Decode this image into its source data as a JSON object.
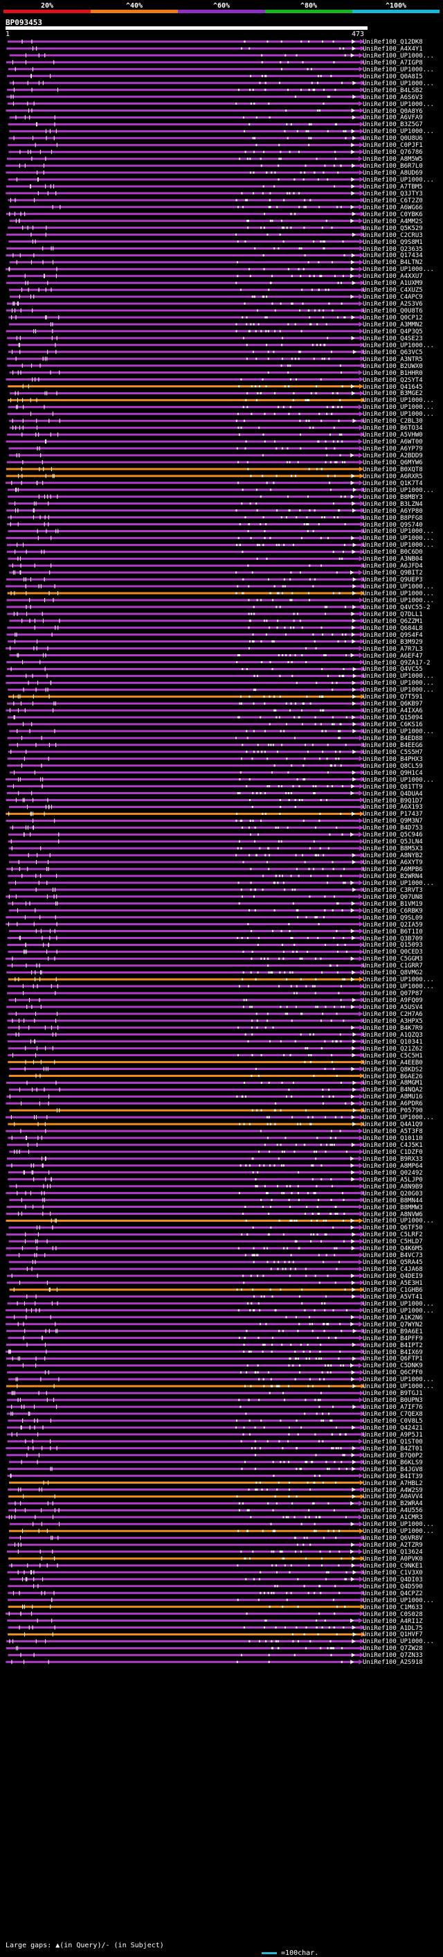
{
  "scale": {
    "labels": [
      "20%",
      "^40%",
      "^60%",
      "^80%",
      "^100%"
    ],
    "colors": [
      "#e0101a",
      "#f07a18",
      "#8d2fc8",
      "#16b41a",
      "#18b8d8"
    ]
  },
  "query": {
    "id": "BP093453",
    "start": "1",
    "end": "473"
  },
  "colors": {
    "purple": "#b13cc8",
    "orange": "#f08c1c",
    "white": "#ffffff"
  },
  "hits": [
    {
      "label": "UniRef100_Q12DK8",
      "c": "p"
    },
    {
      "label": "UniRef100_A4X4Y1",
      "c": "p"
    },
    {
      "label": "UniRef100_UP1000...",
      "c": "p"
    },
    {
      "label": "UniRef100_A7IGP8",
      "c": "p"
    },
    {
      "label": "UniRef100_UP1000...",
      "c": "p"
    },
    {
      "label": "UniRef100_Q0A8I5",
      "c": "p"
    },
    {
      "label": "UniRef100_UP1000...",
      "c": "p"
    },
    {
      "label": "UniRef100_B4LSB2",
      "c": "p"
    },
    {
      "label": "UniRef100_A6S6V3",
      "c": "p"
    },
    {
      "label": "UniRef100_UP1000...",
      "c": "p"
    },
    {
      "label": "UniRef100_Q0A8Y6",
      "c": "p"
    },
    {
      "label": "UniRef100_A6VFA9",
      "c": "p"
    },
    {
      "label": "UniRef100_B3Z5G7",
      "c": "p"
    },
    {
      "label": "UniRef100_UP1000...",
      "c": "p"
    },
    {
      "label": "UniRef100_Q0U8U6",
      "c": "p"
    },
    {
      "label": "UniRef100_C0PJF1",
      "c": "p"
    },
    {
      "label": "UniRef100_Q76786",
      "c": "p"
    },
    {
      "label": "UniRef100_A8M5W5",
      "c": "p"
    },
    {
      "label": "UniRef100_B6R7L0",
      "c": "p"
    },
    {
      "label": "UniRef100_A8UD69",
      "c": "p"
    },
    {
      "label": "UniRef100_UP1000...",
      "c": "p"
    },
    {
      "label": "UniRef100_A7TBM5",
      "c": "p"
    },
    {
      "label": "UniRef100_Q3JTY3",
      "c": "p"
    },
    {
      "label": "UniRef100_C6T2Z0",
      "c": "p"
    },
    {
      "label": "UniRef100_A6WG66",
      "c": "p"
    },
    {
      "label": "UniRef100_C0YBK6",
      "c": "p"
    },
    {
      "label": "UniRef100_A4MM2S",
      "c": "p"
    },
    {
      "label": "UniRef100_Q5K529",
      "c": "p"
    },
    {
      "label": "UniRef100_C2CRU3",
      "c": "p"
    },
    {
      "label": "UniRef100_Q9S8M1",
      "c": "p"
    },
    {
      "label": "UniRef100_Q23635",
      "c": "p"
    },
    {
      "label": "UniRef100_Q17434",
      "c": "p"
    },
    {
      "label": "UniRef100_B4LTN2",
      "c": "p"
    },
    {
      "label": "UniRef100_UP1000...",
      "c": "p"
    },
    {
      "label": "UniRef100_A4XXU7",
      "c": "p"
    },
    {
      "label": "UniRef100_A1UXM9",
      "c": "p"
    },
    {
      "label": "UniRef100_C4XUZ5",
      "c": "p"
    },
    {
      "label": "UniRef100_C4APC9",
      "c": "p"
    },
    {
      "label": "UniRef100_A2S3V6",
      "c": "p"
    },
    {
      "label": "UniRef100_Q0U8T6",
      "c": "p"
    },
    {
      "label": "UniRef100_Q0CP12",
      "c": "p"
    },
    {
      "label": "UniRef100_A3MMN2",
      "c": "p"
    },
    {
      "label": "UniRef100_Q4P3Q5",
      "c": "p"
    },
    {
      "label": "UniRef100_Q4SE23",
      "c": "p"
    },
    {
      "label": "UniRef100_UP1000...",
      "c": "p"
    },
    {
      "label": "UniRef100_Q63VC5",
      "c": "p"
    },
    {
      "label": "UniRef100_A3NTR5",
      "c": "p"
    },
    {
      "label": "UniRef100_B2UWX0",
      "c": "p"
    },
    {
      "label": "UniRef100_B1HHR0",
      "c": "p"
    },
    {
      "label": "UniRef100_Q2SYT4",
      "c": "p"
    },
    {
      "label": "UniRef100_Q41645",
      "c": "o"
    },
    {
      "label": "UniRef100_B3MGE2",
      "c": "p"
    },
    {
      "label": "UniRef100_UP1000...",
      "c": "o"
    },
    {
      "label": "UniRef100_UP1000...",
      "c": "p"
    },
    {
      "label": "UniRef100_UP1000...",
      "c": "p"
    },
    {
      "label": "UniRef100_C2BL30",
      "c": "p"
    },
    {
      "label": "UniRef100_B6TO34",
      "c": "p"
    },
    {
      "label": "UniRef100_A5VHW0",
      "c": "p"
    },
    {
      "label": "UniRef100_A6WT00",
      "c": "p"
    },
    {
      "label": "UniRef100_A6YP79",
      "c": "p"
    },
    {
      "label": "UniRef100_A2BDD9",
      "c": "p"
    },
    {
      "label": "UniRef100_Q6MYW6",
      "c": "p"
    },
    {
      "label": "UniRef100_B0XQT8",
      "c": "o"
    },
    {
      "label": "UniRef100_A6RXR5",
      "c": "o"
    },
    {
      "label": "UniRef100_Q1K7T4",
      "c": "p"
    },
    {
      "label": "UniRef100_UP1000...",
      "c": "p"
    },
    {
      "label": "UniRef100_B8MBY3",
      "c": "p"
    },
    {
      "label": "UniRef100_B3LZN4",
      "c": "p"
    },
    {
      "label": "UniRef100_A6YP80",
      "c": "p"
    },
    {
      "label": "UniRef100_B8PFG8",
      "c": "p"
    },
    {
      "label": "UniRef100_Q9S740",
      "c": "p"
    },
    {
      "label": "UniRef100_UP1000...",
      "c": "p"
    },
    {
      "label": "UniRef100_UP1000...",
      "c": "p"
    },
    {
      "label": "UniRef100_UP1000...",
      "c": "p"
    },
    {
      "label": "UniRef100_B0C6D0",
      "c": "p"
    },
    {
      "label": "UniRef100_A3NB04",
      "c": "p"
    },
    {
      "label": "UniRef100_A6JFD4",
      "c": "p"
    },
    {
      "label": "UniRef100_Q9BIT2",
      "c": "p"
    },
    {
      "label": "UniRef100_Q9UEP3",
      "c": "p"
    },
    {
      "label": "UniRef100_UP1000...",
      "c": "p"
    },
    {
      "label": "UniRef100_UP1000...",
      "c": "o"
    },
    {
      "label": "UniRef100_UP1000...",
      "c": "p"
    },
    {
      "label": "UniRef100_Q4VC55-2",
      "c": "p"
    },
    {
      "label": "UniRef100_Q7DLL1",
      "c": "p"
    },
    {
      "label": "UniRef100_Q6ZZM1",
      "c": "p"
    },
    {
      "label": "UniRef100_Q684L8",
      "c": "p"
    },
    {
      "label": "UniRef100_Q9S4F4",
      "c": "p"
    },
    {
      "label": "UniRef100_B3M929",
      "c": "p"
    },
    {
      "label": "UniRef100_A7R7L3",
      "c": "p"
    },
    {
      "label": "UniRef100_A6EF47",
      "c": "p"
    },
    {
      "label": "UniRef100_Q9ZA17-2",
      "c": "p"
    },
    {
      "label": "UniRef100_Q4VC55",
      "c": "p"
    },
    {
      "label": "UniRef100_UP1000...",
      "c": "p"
    },
    {
      "label": "UniRef100_UP1000...",
      "c": "p"
    },
    {
      "label": "UniRef100_UP1000...",
      "c": "p"
    },
    {
      "label": "UniRef100_Q7T591",
      "c": "o"
    },
    {
      "label": "UniRef100_Q6KB97",
      "c": "p"
    },
    {
      "label": "UniRef100_A4IXA6",
      "c": "p"
    },
    {
      "label": "UniRef100_Q15094",
      "c": "p"
    },
    {
      "label": "UniRef100_C6KS16",
      "c": "p"
    },
    {
      "label": "UniRef100_UP1000...",
      "c": "p"
    },
    {
      "label": "UniRef100_B4ED88",
      "c": "p"
    },
    {
      "label": "UniRef100_B4EEG6",
      "c": "p"
    },
    {
      "label": "UniRef100_C5S5H7",
      "c": "p"
    },
    {
      "label": "UniRef100_B4PHX3",
      "c": "p"
    },
    {
      "label": "UniRef100_Q8CL59",
      "c": "p"
    },
    {
      "label": "UniRef100_Q9H1C4",
      "c": "p"
    },
    {
      "label": "UniRef100_UP1000...",
      "c": "p"
    },
    {
      "label": "UniRef100_Q81TT9",
      "c": "p"
    },
    {
      "label": "UniRef100_Q4DUA4",
      "c": "p"
    },
    {
      "label": "UniRef100_B9Q1D7",
      "c": "p"
    },
    {
      "label": "UniRef100_A6X193",
      "c": "p"
    },
    {
      "label": "UniRef100_P17437",
      "c": "o"
    },
    {
      "label": "UniRef100_Q9M3N7",
      "c": "p"
    },
    {
      "label": "UniRef100_B4D753",
      "c": "p"
    },
    {
      "label": "UniRef100_Q5C946",
      "c": "p"
    },
    {
      "label": "UniRef100_Q5JLN4",
      "c": "p"
    },
    {
      "label": "UniRef100_B8M5X3",
      "c": "p"
    },
    {
      "label": "UniRef100_A8NYB2",
      "c": "p"
    },
    {
      "label": "UniRef100_A6XYT9",
      "c": "p"
    },
    {
      "label": "UniRef100_A6MPB6",
      "c": "p"
    },
    {
      "label": "UniRef100_B2WRN4",
      "c": "p"
    },
    {
      "label": "UniRef100_UP1000...",
      "c": "p"
    },
    {
      "label": "UniRef100_C3RVT3",
      "c": "p"
    },
    {
      "label": "UniRef100_Q07UN8",
      "c": "p"
    },
    {
      "label": "UniRef100_B1VM19",
      "c": "p"
    },
    {
      "label": "UniRef100_C6RBK9",
      "c": "p"
    },
    {
      "label": "UniRef100_Q9SL09",
      "c": "p"
    },
    {
      "label": "UniRef100_Q2IA59",
      "c": "p"
    },
    {
      "label": "UniRef100_B6T1I0",
      "c": "p"
    },
    {
      "label": "UniRef100_Q3B709",
      "c": "p"
    },
    {
      "label": "UniRef100_Q15093",
      "c": "p"
    },
    {
      "label": "UniRef100_Q0CED3",
      "c": "p"
    },
    {
      "label": "UniRef100_C5GGM3",
      "c": "p"
    },
    {
      "label": "UniRef100_C1GRR7",
      "c": "p"
    },
    {
      "label": "UniRef100_Q8VMG2",
      "c": "p"
    },
    {
      "label": "UniRef100_UP1000...",
      "c": "o"
    },
    {
      "label": "UniRef100_UP1000...",
      "c": "p"
    },
    {
      "label": "UniRef100_Q07P87",
      "c": "p"
    },
    {
      "label": "UniRef100_A9FQ09",
      "c": "p"
    },
    {
      "label": "UniRef100_A5USV4",
      "c": "p"
    },
    {
      "label": "UniRef100_C2H7A6",
      "c": "p"
    },
    {
      "label": "UniRef100_A3HPX5",
      "c": "p"
    },
    {
      "label": "UniRef100_B4K7R9",
      "c": "p"
    },
    {
      "label": "UniRef100_A1QZQ3",
      "c": "p"
    },
    {
      "label": "UniRef100_Q10341",
      "c": "p"
    },
    {
      "label": "UniRef100_Q21Z62",
      "c": "p"
    },
    {
      "label": "UniRef100_C5C5H1",
      "c": "p"
    },
    {
      "label": "UniRef100_A4EEB0",
      "c": "o"
    },
    {
      "label": "UniRef100_Q8KDS2",
      "c": "p"
    },
    {
      "label": "UniRef100_B6AE26",
      "c": "o"
    },
    {
      "label": "UniRef100_A8MGM1",
      "c": "p"
    },
    {
      "label": "UniRef100_B4NQA2",
      "c": "p"
    },
    {
      "label": "UniRef100_A8MU16",
      "c": "p"
    },
    {
      "label": "UniRef100_A6PDR6",
      "c": "p"
    },
    {
      "label": "UniRef100_P05790",
      "c": "o"
    },
    {
      "label": "UniRef100_UP1000...",
      "c": "p"
    },
    {
      "label": "UniRef100_Q4A1Q9",
      "c": "o"
    },
    {
      "label": "UniRef100_A5T3F8",
      "c": "p"
    },
    {
      "label": "UniRef100_Q10110",
      "c": "p"
    },
    {
      "label": "UniRef100_C4J5K1",
      "c": "p"
    },
    {
      "label": "UniRef100_C1DZF0",
      "c": "p"
    },
    {
      "label": "UniRef100_B9RX33",
      "c": "p"
    },
    {
      "label": "UniRef100_A8MP64",
      "c": "p"
    },
    {
      "label": "UniRef100_Q02492",
      "c": "p"
    },
    {
      "label": "UniRef100_A5LJP0",
      "c": "p"
    },
    {
      "label": "UniRef100_A8N9B9",
      "c": "p"
    },
    {
      "label": "UniRef100_Q20G03",
      "c": "p"
    },
    {
      "label": "UniRef100_B8MN44",
      "c": "p"
    },
    {
      "label": "UniRef100_B8MMW3",
      "c": "p"
    },
    {
      "label": "UniRef100_A8NVW6",
      "c": "p"
    },
    {
      "label": "UniRef100_UP1000...",
      "c": "o"
    },
    {
      "label": "UniRef100_Q6TF50",
      "c": "p"
    },
    {
      "label": "UniRef100_C5LRF2",
      "c": "p"
    },
    {
      "label": "UniRef100_C5HLD7",
      "c": "p"
    },
    {
      "label": "UniRef100_Q4K6M5",
      "c": "p"
    },
    {
      "label": "UniRef100_B4VC73",
      "c": "p"
    },
    {
      "label": "UniRef100_Q5RA45",
      "c": "p"
    },
    {
      "label": "UniRef100_C4JA68",
      "c": "p"
    },
    {
      "label": "UniRef100_Q4DEI9",
      "c": "p"
    },
    {
      "label": "UniRef100_A5E3H1",
      "c": "p"
    },
    {
      "label": "UniRef100_C1GHB6",
      "c": "o"
    },
    {
      "label": "UniRef100_A5VT41",
      "c": "p"
    },
    {
      "label": "UniRef100_UP1000...",
      "c": "p"
    },
    {
      "label": "UniRef100_UP1000...",
      "c": "p"
    },
    {
      "label": "UniRef100_A1K2N6",
      "c": "p"
    },
    {
      "label": "UniRef100_Q7WYN2",
      "c": "p"
    },
    {
      "label": "UniRef100_B9A6E1",
      "c": "p"
    },
    {
      "label": "UniRef100_B4PFF9",
      "c": "p"
    },
    {
      "label": "UniRef100_B4IPT2",
      "c": "p"
    },
    {
      "label": "UniRef100_B4IX69",
      "c": "p"
    },
    {
      "label": "UniRef100_Q6FTP1",
      "c": "p"
    },
    {
      "label": "UniRef100_C5DNK9",
      "c": "p"
    },
    {
      "label": "UniRef100_Q6CPF0",
      "c": "p"
    },
    {
      "label": "UniRef100_UP1000...",
      "c": "p"
    },
    {
      "label": "UniRef100_UP1000...",
      "c": "o"
    },
    {
      "label": "UniRef100_B9TGJ1",
      "c": "p"
    },
    {
      "label": "UniRef100_B0UPN3",
      "c": "p"
    },
    {
      "label": "UniRef100_A7IF76",
      "c": "p"
    },
    {
      "label": "UniRef100_C7QEX8",
      "c": "p"
    },
    {
      "label": "UniRef100_C0V8L5",
      "c": "p"
    },
    {
      "label": "UniRef100_Q42421",
      "c": "p"
    },
    {
      "label": "UniRef100_A9P5J1",
      "c": "p"
    },
    {
      "label": "UniRef100_Q1ST00",
      "c": "p"
    },
    {
      "label": "UniRef100_B4ZT01",
      "c": "p"
    },
    {
      "label": "UniRef100_B7Q0P2",
      "c": "p"
    },
    {
      "label": "UniRef100_B6KLS9",
      "c": "p"
    },
    {
      "label": "UniRef100_B4JGV8",
      "c": "p"
    },
    {
      "label": "UniRef100_B4IT39",
      "c": "p"
    },
    {
      "label": "UniRef100_A7HBL2",
      "c": "o"
    },
    {
      "label": "UniRef100_A4W2S9",
      "c": "p"
    },
    {
      "label": "UniRef100_A0AVV4",
      "c": "o"
    },
    {
      "label": "UniRef100_B2WRA4",
      "c": "p"
    },
    {
      "label": "UniRef100_A4U556",
      "c": "p"
    },
    {
      "label": "UniRef100_A1CMR3",
      "c": "p"
    },
    {
      "label": "UniRef100_UP1000...",
      "c": "p"
    },
    {
      "label": "UniRef100_UP1000...",
      "c": "o"
    },
    {
      "label": "UniRef100_Q6VR8V",
      "c": "p"
    },
    {
      "label": "UniRef100_A2TZR9",
      "c": "p"
    },
    {
      "label": "UniRef100_Q13624",
      "c": "p"
    },
    {
      "label": "UniRef100_A0PVK0",
      "c": "o"
    },
    {
      "label": "UniRef100_C9NKE1",
      "c": "p"
    },
    {
      "label": "UniRef100_C1V3X0",
      "c": "p"
    },
    {
      "label": "UniRef100_Q4DI03",
      "c": "p"
    },
    {
      "label": "UniRef100_Q4D590",
      "c": "p"
    },
    {
      "label": "UniRef100_Q4CPZ2",
      "c": "p"
    },
    {
      "label": "UniRef100_UP1000...",
      "c": "p"
    },
    {
      "label": "UniRef100_C1M633",
      "c": "o"
    },
    {
      "label": "UniRef100_C0S028",
      "c": "p"
    },
    {
      "label": "UniRef100_A4RI1Z",
      "c": "p"
    },
    {
      "label": "UniRef100_A1DL75",
      "c": "p"
    },
    {
      "label": "UniRef100_Q1HVF7",
      "c": "o"
    },
    {
      "label": "UniRef100_UP1000...",
      "c": "p"
    },
    {
      "label": "UniRef100_Q7ZW28",
      "c": "p"
    },
    {
      "label": "UniRef100_Q7ZN33",
      "c": "p"
    },
    {
      "label": "UniRef100_A2S918",
      "c": "p"
    }
  ],
  "legend": {
    "text": "Large gaps: ▲(in Query)/- (in Subject)",
    "scale_text": "=100char."
  }
}
